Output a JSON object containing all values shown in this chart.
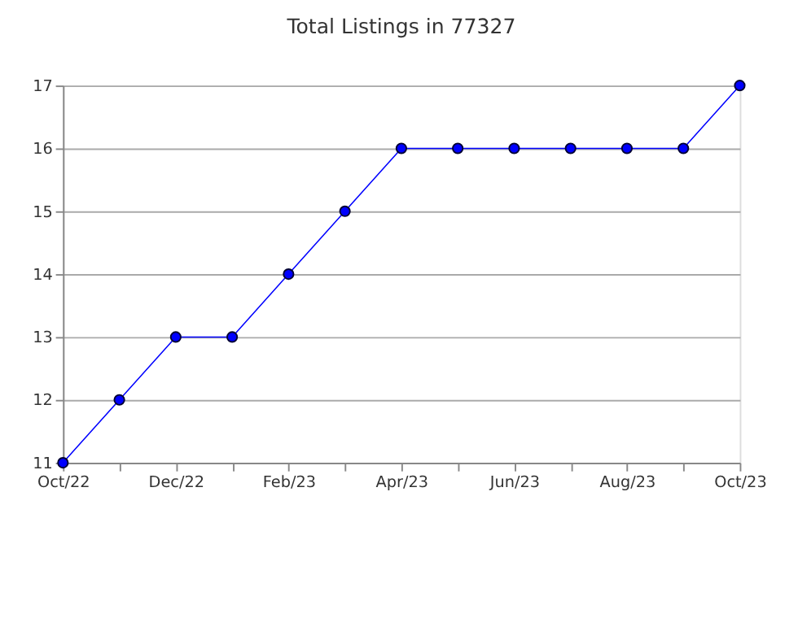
{
  "chart_data": {
    "type": "line",
    "title": "Total Listings in 77327",
    "categories": [
      "Oct/22",
      null,
      "Dec/22",
      null,
      "Feb/23",
      null,
      "Apr/23",
      null,
      "Jun/23",
      null,
      "Aug/23",
      null,
      "Oct/23"
    ],
    "series": [
      {
        "color": "#0000ff",
        "values": [
          11,
          12,
          13,
          13,
          14,
          15,
          16,
          16,
          16,
          16,
          16,
          16,
          17
        ]
      }
    ],
    "ylim": [
      11,
      17
    ],
    "yticks": [
      11,
      12,
      13,
      14,
      15,
      16,
      17
    ],
    "grid": "y",
    "marker": "circle",
    "line_style": "solid",
    "legend": false
  }
}
